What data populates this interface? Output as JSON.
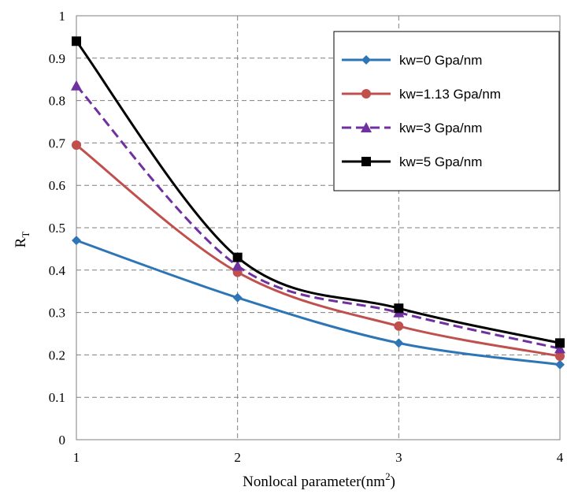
{
  "chart_data": {
    "type": "line",
    "title": "",
    "xlabel_main": "Nonlocal parameter(nm",
    "xlabel_sup": "2",
    "xlabel_end": ")",
    "ylabel_main": "R",
    "ylabel_sub": "T",
    "x": [
      1,
      2,
      3,
      4
    ],
    "xlim": [
      1,
      4
    ],
    "ylim": [
      0,
      1
    ],
    "xticks": [
      "1",
      "2",
      "3",
      "4"
    ],
    "yticks": [
      "0",
      "0.1",
      "0.2",
      "0.3",
      "0.4",
      "0.5",
      "0.6",
      "0.7",
      "0.8",
      "0.9",
      "1"
    ],
    "grid": true,
    "legend_position": "top-right",
    "series": [
      {
        "name": "kw=0 Gpa/nm",
        "values": [
          0.47,
          0.335,
          0.228,
          0.177
        ],
        "color": "#2e75b6",
        "marker": "diamond",
        "dash": "solid"
      },
      {
        "name": "kw=1.13 Gpa/nm",
        "values": [
          0.695,
          0.395,
          0.268,
          0.197
        ],
        "color": "#c0504d",
        "marker": "circle",
        "dash": "solid"
      },
      {
        "name": "kw=3 Gpa/nm",
        "values": [
          0.835,
          0.41,
          0.3,
          0.215
        ],
        "color": "#7030a0",
        "marker": "triangle",
        "dash": "dashed"
      },
      {
        "name": "kw=5 Gpa/nm",
        "values": [
          0.94,
          0.43,
          0.31,
          0.228
        ],
        "color": "#000000",
        "marker": "square",
        "dash": "solid"
      }
    ]
  }
}
